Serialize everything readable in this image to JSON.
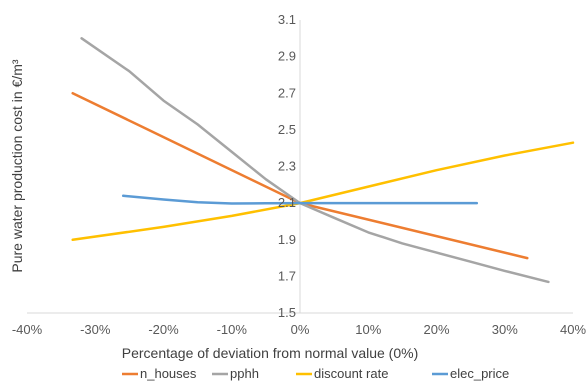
{
  "chart_data": {
    "type": "line",
    "xlabel": "Percentage of deviation from normal value (0%)",
    "ylabel": "Pure water production cost in €/m³",
    "xlim": [
      -40,
      40
    ],
    "ylim": [
      1.5,
      3.1
    ],
    "x_ticks": [
      "-40%",
      "-30%",
      "-20%",
      "-10%",
      "0%",
      "10%",
      "20%",
      "30%",
      "40%"
    ],
    "x_tick_values": [
      -40,
      -30,
      -20,
      -10,
      0,
      10,
      20,
      30,
      40
    ],
    "y_ticks": [
      "1.5",
      "1.7",
      "1.9",
      "2.1",
      "2.3",
      "2.5",
      "2.7",
      "2.9",
      "3.1"
    ],
    "y_tick_values": [
      1.5,
      1.7,
      1.9,
      2.1,
      2.3,
      2.5,
      2.7,
      2.9,
      3.1
    ],
    "legend_position": "bottom",
    "series": [
      {
        "name": "n_houses",
        "color": "#ED7D31",
        "points": [
          [
            -33.3,
            2.7
          ],
          [
            0,
            2.1
          ],
          [
            33.3,
            1.8
          ]
        ]
      },
      {
        "name": "pphh",
        "color": "#A5A5A5",
        "points": [
          [
            -32,
            3.0
          ],
          [
            -25,
            2.82
          ],
          [
            -20,
            2.66
          ],
          [
            -15,
            2.53
          ],
          [
            -10,
            2.38
          ],
          [
            -5,
            2.23
          ],
          [
            0,
            2.1
          ],
          [
            5,
            2.02
          ],
          [
            10,
            1.94
          ],
          [
            15,
            1.88
          ],
          [
            20,
            1.83
          ],
          [
            25,
            1.78
          ],
          [
            30,
            1.73
          ],
          [
            36.4,
            1.67
          ]
        ]
      },
      {
        "name": "discount rate",
        "color": "#FFC000",
        "points": [
          [
            -33.3,
            1.9
          ],
          [
            -20,
            1.97
          ],
          [
            -10,
            2.03
          ],
          [
            0,
            2.1
          ],
          [
            10,
            2.19
          ],
          [
            20,
            2.28
          ],
          [
            30,
            2.36
          ],
          [
            40,
            2.43
          ]
        ]
      },
      {
        "name": "elec_price",
        "color": "#5B9BD5",
        "points": [
          [
            -25.9,
            2.14
          ],
          [
            -20,
            2.12
          ],
          [
            -15,
            2.105
          ],
          [
            -10,
            2.098
          ],
          [
            -5,
            2.099
          ],
          [
            0,
            2.1
          ],
          [
            10,
            2.1
          ],
          [
            25.9,
            2.1
          ]
        ]
      }
    ]
  }
}
